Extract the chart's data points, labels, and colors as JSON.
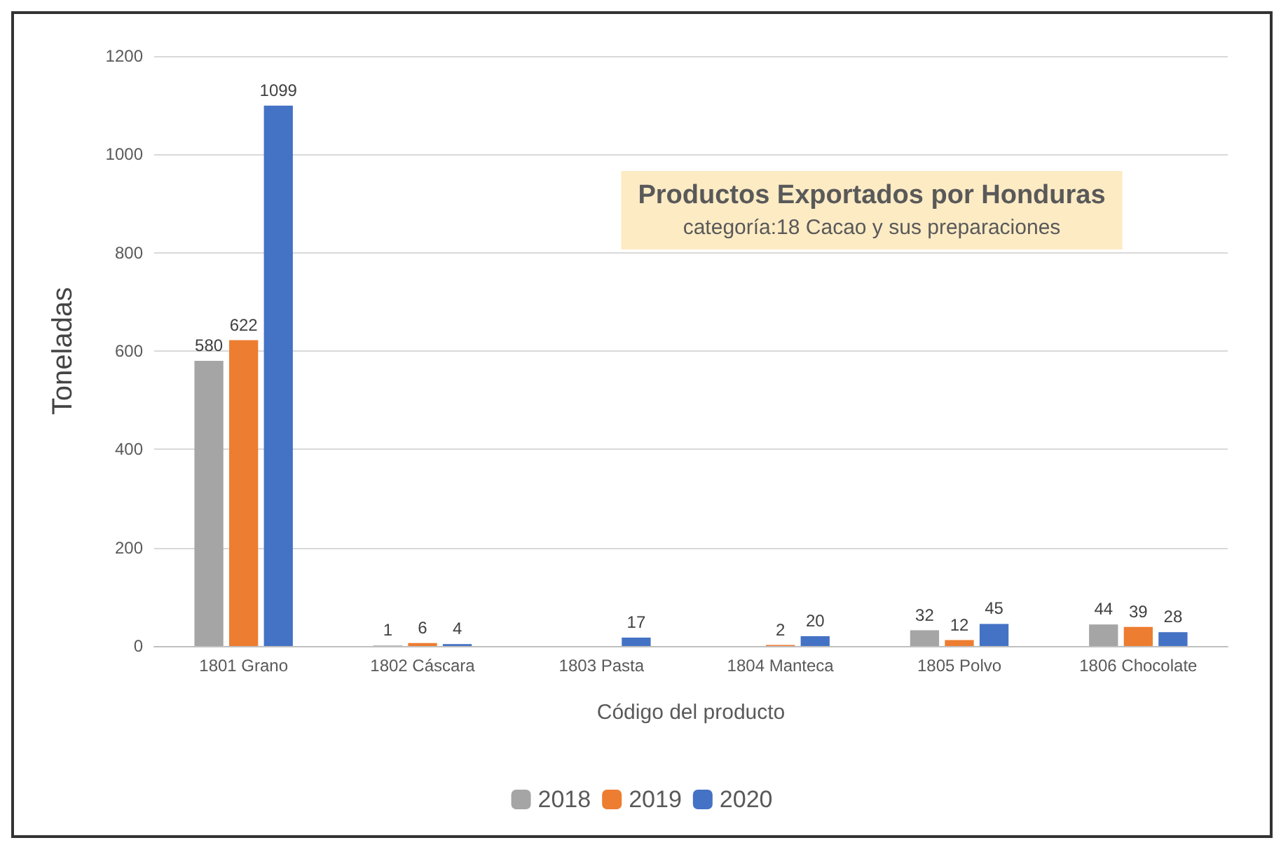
{
  "chart_data": {
    "type": "bar",
    "title": "Productos Exportados por Honduras",
    "subtitle": "categoría:18 Cacao y sus preparaciones",
    "xlabel": "Código del producto",
    "ylabel": "Toneladas",
    "categories": [
      "1801 Grano",
      "1802 Cáscara",
      "1803 Pasta",
      "1804 Manteca",
      "1805 Polvo",
      "1806 Chocolate"
    ],
    "series": [
      {
        "name": "2018",
        "color": "#a5a5a5",
        "values": [
          580,
          1,
          null,
          null,
          32,
          44
        ]
      },
      {
        "name": "2019",
        "color": "#ed7d31",
        "values": [
          622,
          6,
          null,
          2,
          12,
          39
        ]
      },
      {
        "name": "2020",
        "color": "#4472c4",
        "values": [
          1099,
          4,
          17,
          20,
          45,
          28
        ]
      }
    ],
    "ylim": [
      0,
      1200
    ],
    "yticks": [
      0,
      200,
      400,
      600,
      800,
      1000,
      1200
    ],
    "grid": "y",
    "legend": "bottom",
    "data_labels": true
  }
}
